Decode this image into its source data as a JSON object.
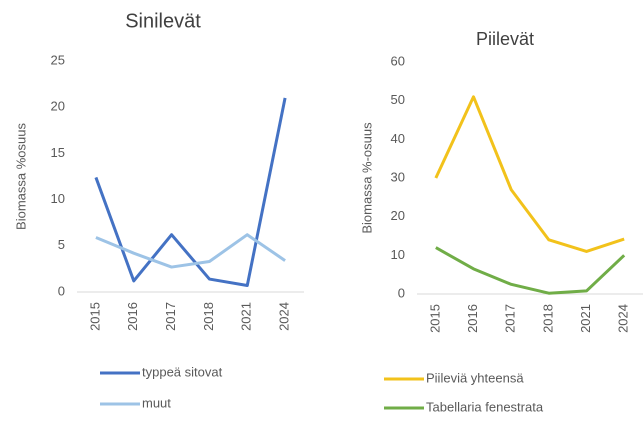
{
  "chart_data": [
    {
      "type": "line",
      "title": "Sinilevät",
      "y_label": "Biomassa %osuus",
      "categories": [
        "2015",
        "2016",
        "2017",
        "2018",
        "2021",
        "2024"
      ],
      "series": [
        {
          "name": "typpeä sitovat",
          "color": "#4472c4",
          "values": [
            12.4,
            1.2,
            6.2,
            1.4,
            0.7,
            21
          ]
        },
        {
          "name": "muut",
          "color": "#9dc3e6",
          "values": [
            5.9,
            4.2,
            2.7,
            3.3,
            6.2,
            3.4
          ]
        }
      ],
      "ylim": [
        0,
        25
      ],
      "yticks": [
        0,
        5,
        10,
        15,
        20,
        25
      ],
      "legend": "bottom"
    },
    {
      "type": "line",
      "title": "Piilevät",
      "y_label": "Biomassa %-osuus",
      "categories": [
        "2015",
        "2016",
        "2017",
        "2018",
        "2021",
        "2024"
      ],
      "series": [
        {
          "name": "Piileviä yhteensä",
          "color": "#f2c21b",
          "values": [
            30,
            51,
            27,
            14,
            11,
            14.2
          ]
        },
        {
          "name": "Tabellaria fenestrata",
          "color": "#70ad47",
          "values": [
            12,
            6.5,
            2.5,
            0.2,
            0.8,
            10
          ]
        }
      ],
      "ylim": [
        0,
        60
      ],
      "yticks": [
        0,
        10,
        20,
        30,
        40,
        50,
        60
      ],
      "legend": "bottom"
    }
  ]
}
